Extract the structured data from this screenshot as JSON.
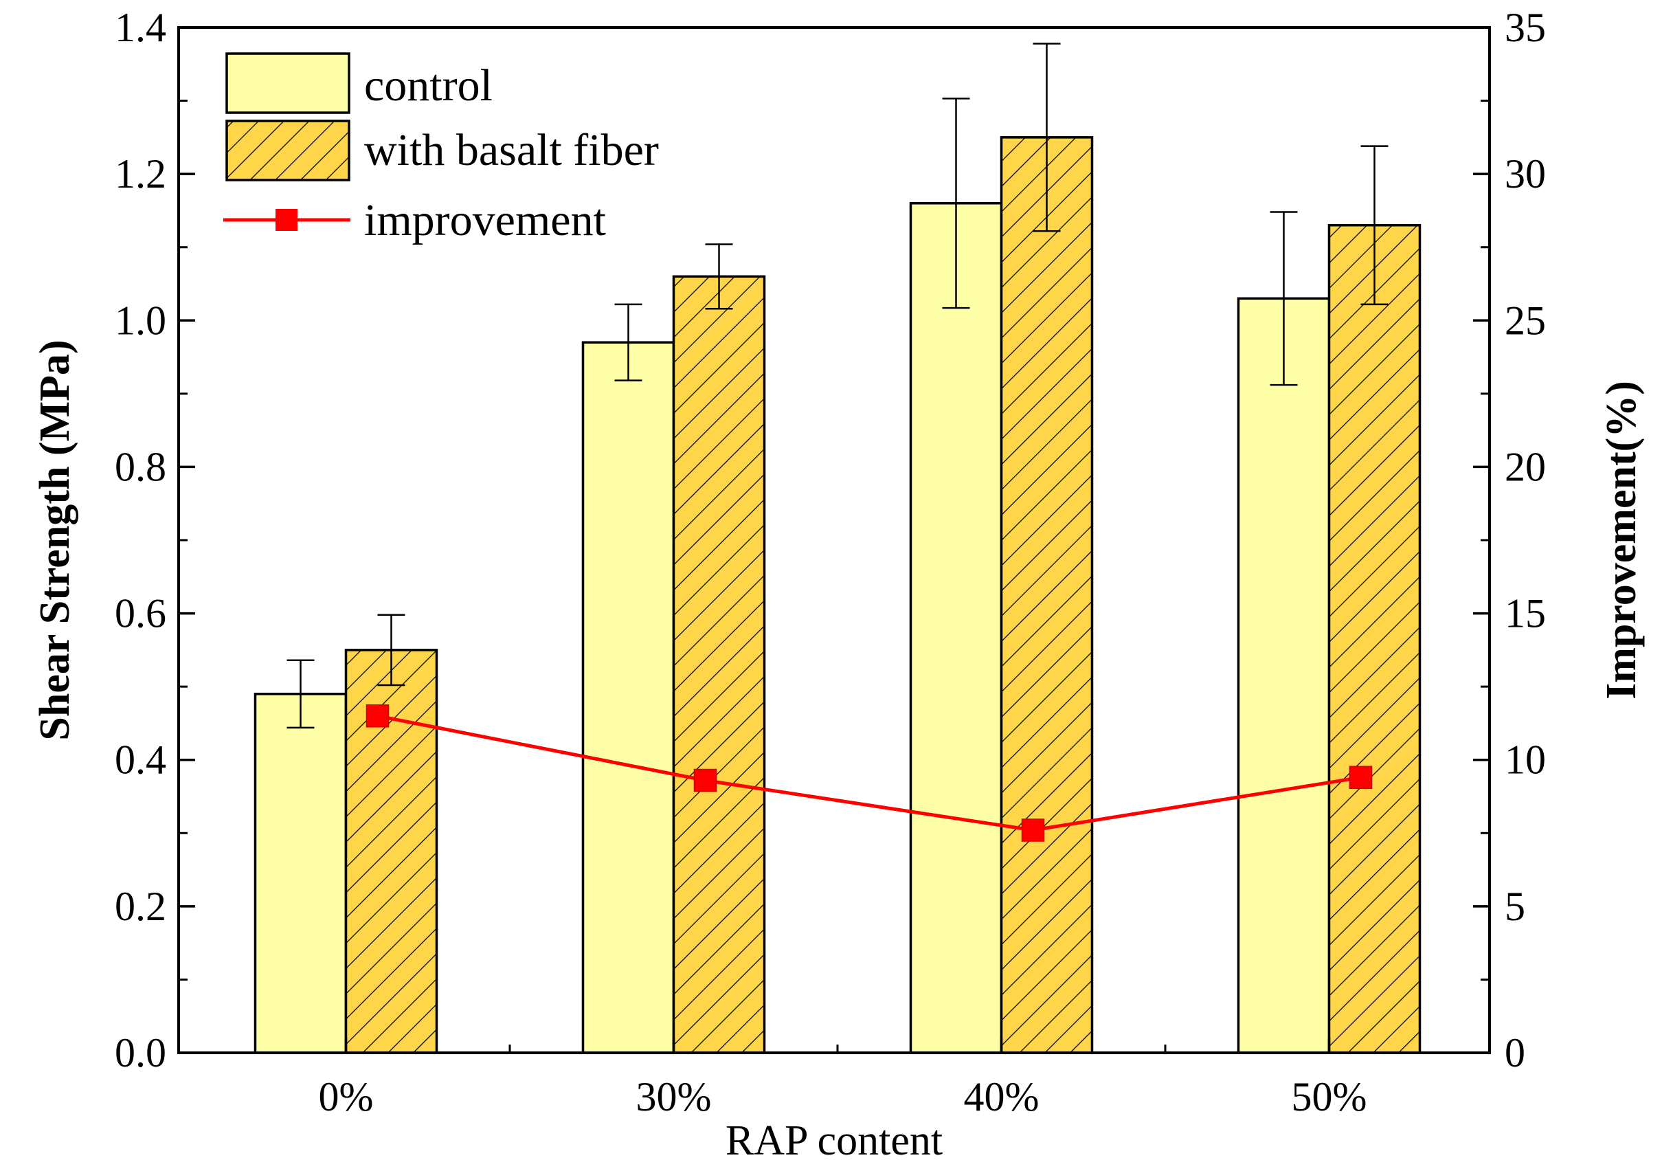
{
  "chart_data": {
    "type": "bar",
    "categories": [
      "0%",
      "30%",
      "40%",
      "50%"
    ],
    "series": [
      {
        "name": "control",
        "values": [
          0.49,
          0.97,
          1.16,
          1.03
        ],
        "errors": [
          0.046,
          0.052,
          0.143,
          0.118
        ],
        "color": "#FFFFA8",
        "axis": "left"
      },
      {
        "name": "with basalt fiber",
        "values": [
          0.55,
          1.06,
          1.25,
          1.13
        ],
        "errors": [
          0.048,
          0.044,
          0.128,
          0.108
        ],
        "color": "#FFD54A",
        "pattern": "hatched",
        "axis": "left"
      },
      {
        "name": "improvement",
        "type": "line",
        "values": [
          11.5,
          9.3,
          7.6,
          9.4
        ],
        "color": "#FF0000",
        "marker": "square",
        "axis": "right"
      }
    ],
    "xlabel": "RAP content",
    "ylabel": "Shear Strength (MPa)",
    "y2label": "Improvement(%)",
    "ylim": [
      0,
      1.4
    ],
    "y2lim": [
      0,
      35
    ],
    "yticks": [
      "0.0",
      "0.2",
      "0.4",
      "0.6",
      "0.8",
      "1.0",
      "1.2",
      "1.4"
    ],
    "y2ticks": [
      "0",
      "5",
      "10",
      "15",
      "20",
      "25",
      "30",
      "35"
    ],
    "legend_position": "top-left",
    "grid": false
  }
}
